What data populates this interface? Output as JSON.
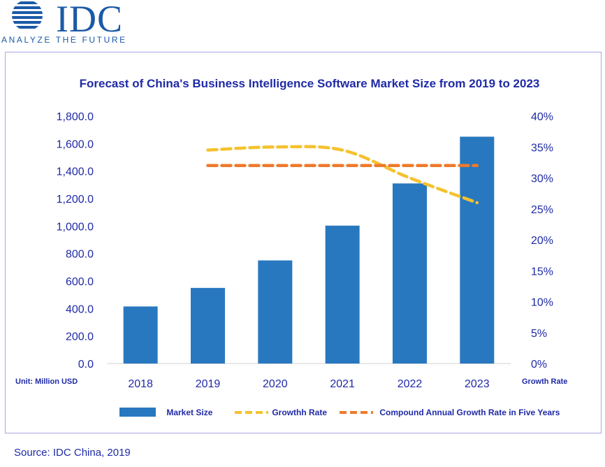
{
  "logo": {
    "name": "IDC",
    "tagline": "ANALYZE THE FUTURE"
  },
  "source": "Source: IDC China, 2019",
  "chart_data": {
    "type": "bar",
    "title": "Forecast of China's Business Intelligence Software Market Size from 2019 to 2023",
    "categories": [
      "2018",
      "2019",
      "2020",
      "2021",
      "2022",
      "2023"
    ],
    "series": [
      {
        "name": "Market Size",
        "type": "bar",
        "axis": "left",
        "color": "#2878bf",
        "values": [
          415,
          550,
          750,
          1003,
          1310,
          1650
        ]
      },
      {
        "name": "Growthh Rate",
        "type": "line",
        "axis": "right",
        "style": "dashed",
        "color": "#f5c22e",
        "values": [
          null,
          34.5,
          35,
          34.5,
          30,
          26
        ]
      },
      {
        "name": "Compound Annual Growth Rate in Five Years",
        "type": "line",
        "axis": "right",
        "style": "dashed",
        "color": "#ee7a2b",
        "values": [
          null,
          32,
          32,
          32,
          32,
          32
        ]
      }
    ],
    "y_left": {
      "label": "Unit: Million USD",
      "ylim": [
        0,
        1800
      ],
      "ticks": [
        "0.0",
        "200.0",
        "400.0",
        "600.0",
        "800.0",
        "1,000.0",
        "1,200.0",
        "1,400.0",
        "1,600.0",
        "1,800.0"
      ]
    },
    "y_right": {
      "label": "Growth Rate",
      "ylim": [
        0,
        40
      ],
      "ticks": [
        "0%",
        "5%",
        "10%",
        "15%",
        "20%",
        "25%",
        "30%",
        "35%",
        "40%"
      ]
    },
    "grid": false,
    "legend_position": "bottom"
  }
}
